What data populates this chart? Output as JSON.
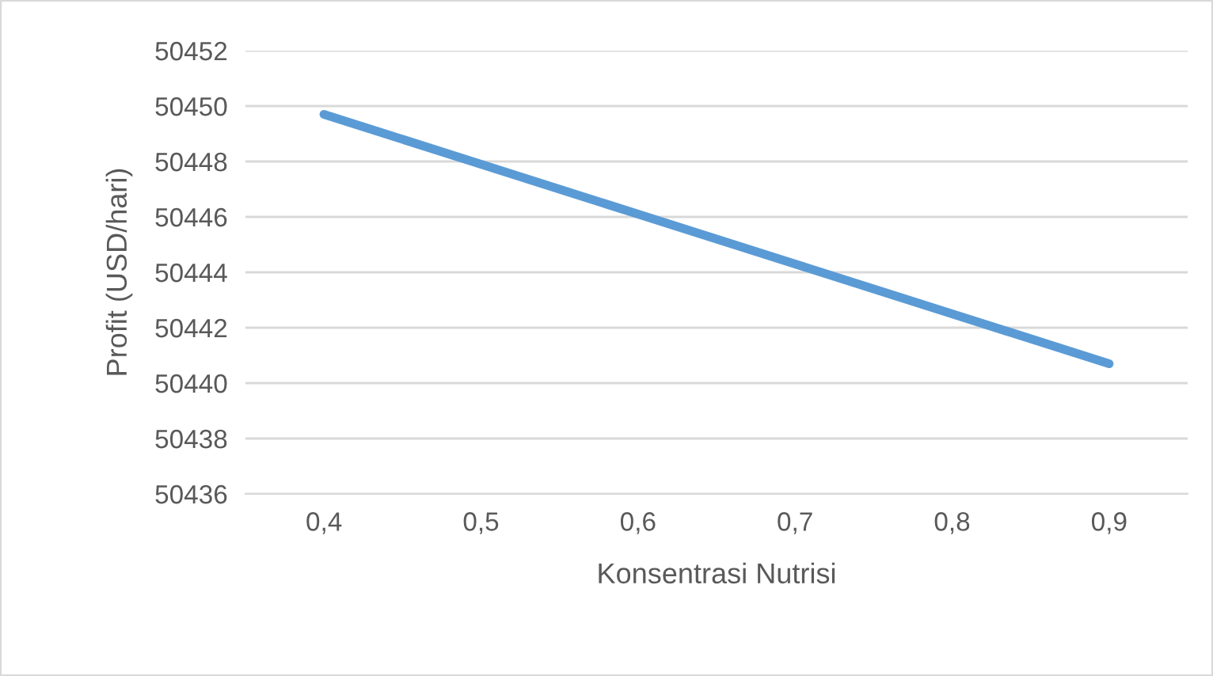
{
  "chart_data": {
    "type": "line",
    "xlabel": "Konsentrasi Nutrisi",
    "ylabel": "Profit (USD/hari)",
    "categories": [
      "0,4",
      "0,5",
      "0,6",
      "0,7",
      "0,8",
      "0,9"
    ],
    "series": [
      {
        "color": "#5b9bd5",
        "values": [
          50449.7,
          50447.9,
          50446.1,
          50444.3,
          50442.5,
          50440.7
        ]
      }
    ],
    "ylim": [
      50436,
      50452
    ],
    "yticks": [
      50436,
      50438,
      50440,
      50442,
      50444,
      50446,
      50448,
      50450,
      50452
    ],
    "grid": "y",
    "marker": "none",
    "line_style": "solid"
  }
}
